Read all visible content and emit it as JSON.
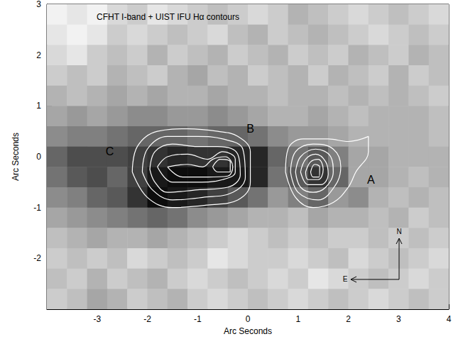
{
  "chart_data": {
    "type": "heatmap",
    "title": "CFHT I-band + UIST IFU Hα contours",
    "x_label": "Arc Seconds",
    "y_label": "Arc Seconds",
    "xlim": [
      -4,
      4
    ],
    "xticks": [
      -3,
      -2,
      -1,
      0,
      1,
      2,
      3,
      4
    ],
    "ylim": [
      -3,
      3
    ],
    "yticks": [
      -2,
      -1,
      0,
      1,
      2,
      3
    ],
    "image": {
      "x": [
        -3.8,
        -3.4,
        -3.0,
        -2.6,
        -2.2,
        -1.8,
        -1.4,
        -1.0,
        -0.6,
        -0.2,
        0.2,
        0.6,
        1.0,
        1.4,
        1.8,
        2.2,
        2.6,
        3.0,
        3.4,
        3.8
      ],
      "y": [
        2.8,
        2.4,
        2.0,
        1.6,
        1.2,
        0.8,
        0.4,
        0.0,
        -0.4,
        -0.8,
        -1.2,
        -1.6,
        -2.0,
        -2.4,
        -2.8
      ],
      "zlim": [
        0,
        1
      ],
      "values": [
        [
          0.05,
          0.1,
          0.05,
          0.15,
          0.2,
          0.1,
          0.15,
          0.2,
          0.25,
          0.2,
          0.15,
          0.2,
          0.3,
          0.25,
          0.2,
          0.15,
          0.2,
          0.25,
          0.2,
          0.15
        ],
        [
          0.1,
          0.05,
          0.1,
          0.2,
          0.15,
          0.2,
          0.25,
          0.2,
          0.15,
          0.25,
          0.3,
          0.2,
          0.25,
          0.3,
          0.25,
          0.2,
          0.15,
          0.2,
          0.25,
          0.2
        ],
        [
          0.15,
          0.1,
          0.2,
          0.25,
          0.2,
          0.3,
          0.2,
          0.25,
          0.3,
          0.2,
          0.25,
          0.3,
          0.2,
          0.25,
          0.2,
          0.3,
          0.25,
          0.2,
          0.3,
          0.25
        ],
        [
          0.2,
          0.25,
          0.2,
          0.3,
          0.25,
          0.2,
          0.3,
          0.35,
          0.25,
          0.3,
          0.2,
          0.25,
          0.3,
          0.2,
          0.3,
          0.25,
          0.2,
          0.3,
          0.2,
          0.25
        ],
        [
          0.3,
          0.25,
          0.3,
          0.35,
          0.3,
          0.35,
          0.3,
          0.3,
          0.35,
          0.3,
          0.3,
          0.25,
          0.3,
          0.3,
          0.25,
          0.3,
          0.25,
          0.3,
          0.25,
          0.2
        ],
        [
          0.35,
          0.4,
          0.35,
          0.4,
          0.45,
          0.45,
          0.4,
          0.4,
          0.45,
          0.4,
          0.35,
          0.3,
          0.3,
          0.35,
          0.3,
          0.25,
          0.3,
          0.3,
          0.3,
          0.25
        ],
        [
          0.45,
          0.5,
          0.5,
          0.55,
          0.6,
          0.6,
          0.6,
          0.55,
          0.6,
          0.6,
          0.55,
          0.45,
          0.4,
          0.4,
          0.35,
          0.3,
          0.3,
          0.3,
          0.3,
          0.25
        ],
        [
          0.6,
          0.7,
          0.7,
          0.7,
          0.75,
          0.8,
          0.85,
          0.8,
          0.8,
          0.85,
          0.85,
          0.6,
          0.55,
          0.65,
          0.5,
          0.35,
          0.35,
          0.3,
          0.3,
          0.3
        ],
        [
          0.55,
          0.65,
          0.7,
          0.6,
          0.75,
          0.9,
          0.95,
          0.95,
          0.9,
          0.9,
          0.85,
          0.55,
          0.65,
          0.8,
          0.6,
          0.35,
          0.35,
          0.3,
          0.25,
          0.3
        ],
        [
          0.45,
          0.5,
          0.6,
          0.65,
          0.8,
          0.95,
          0.9,
          0.85,
          0.75,
          0.65,
          0.55,
          0.4,
          0.5,
          0.6,
          0.4,
          0.45,
          0.3,
          0.25,
          0.3,
          0.25
        ],
        [
          0.35,
          0.4,
          0.45,
          0.5,
          0.55,
          0.6,
          0.55,
          0.45,
          0.4,
          0.35,
          0.3,
          0.3,
          0.25,
          0.35,
          0.3,
          0.3,
          0.25,
          0.3,
          0.2,
          0.25
        ],
        [
          0.25,
          0.3,
          0.35,
          0.3,
          0.3,
          0.35,
          0.3,
          0.25,
          0.2,
          0.15,
          0.2,
          0.25,
          0.2,
          0.25,
          0.2,
          0.2,
          0.25,
          0.2,
          0.25,
          0.2
        ],
        [
          0.2,
          0.25,
          0.2,
          0.25,
          0.15,
          0.2,
          0.25,
          0.2,
          0.1,
          0.15,
          0.2,
          0.2,
          0.15,
          0.2,
          0.25,
          0.15,
          0.2,
          0.25,
          0.2,
          0.15
        ],
        [
          0.25,
          0.2,
          0.3,
          0.2,
          0.25,
          0.3,
          0.2,
          0.15,
          0.2,
          0.25,
          0.2,
          0.15,
          0.2,
          0.1,
          0.15,
          0.2,
          0.25,
          0.2,
          0.15,
          0.2
        ],
        [
          0.2,
          0.25,
          0.35,
          0.3,
          0.2,
          0.25,
          0.3,
          0.2,
          0.15,
          0.2,
          0.25,
          0.2,
          0.15,
          0.2,
          0.25,
          0.2,
          0.15,
          0.2,
          0.25,
          0.2
        ]
      ]
    },
    "contours": {
      "color": "#ffffff",
      "lines": [
        [
          [
            -2.3,
            -0.3
          ],
          [
            -2.2,
            0.2
          ],
          [
            -1.8,
            0.5
          ],
          [
            -1.2,
            0.55
          ],
          [
            -0.6,
            0.5
          ],
          [
            -0.2,
            0.4
          ],
          [
            0.05,
            0.1
          ],
          [
            0.05,
            -0.5
          ],
          [
            -0.2,
            -0.85
          ],
          [
            -0.8,
            -0.95
          ],
          [
            -1.5,
            -1.0
          ],
          [
            -2.0,
            -0.8
          ],
          [
            -2.3,
            -0.3
          ]
        ],
        [
          [
            -2.1,
            -0.3
          ],
          [
            -2.0,
            0.15
          ],
          [
            -1.6,
            0.4
          ],
          [
            -1.0,
            0.4
          ],
          [
            -0.5,
            0.35
          ],
          [
            -0.1,
            0.15
          ],
          [
            -0.05,
            -0.4
          ],
          [
            -0.3,
            -0.7
          ],
          [
            -0.9,
            -0.8
          ],
          [
            -1.5,
            -0.85
          ],
          [
            -1.9,
            -0.65
          ],
          [
            -2.1,
            -0.3
          ]
        ],
        [
          [
            -1.95,
            -0.25
          ],
          [
            -1.85,
            0.1
          ],
          [
            -1.5,
            0.25
          ],
          [
            -1.0,
            0.2
          ],
          [
            -0.6,
            0.2
          ],
          [
            -0.2,
            0.05
          ],
          [
            -0.15,
            -0.35
          ],
          [
            -0.4,
            -0.6
          ],
          [
            -1.0,
            -0.65
          ],
          [
            -1.6,
            -0.7
          ],
          [
            -1.85,
            -0.5
          ],
          [
            -1.95,
            -0.25
          ]
        ],
        [
          [
            -1.8,
            -0.2
          ],
          [
            -1.6,
            0.0
          ],
          [
            -1.2,
            0.05
          ],
          [
            -0.8,
            -0.05
          ],
          [
            -0.5,
            0.1
          ],
          [
            -0.25,
            -0.05
          ],
          [
            -0.25,
            -0.3
          ],
          [
            -0.5,
            -0.45
          ],
          [
            -1.0,
            -0.5
          ],
          [
            -1.5,
            -0.5
          ],
          [
            -1.8,
            -0.2
          ]
        ],
        [
          [
            -1.6,
            -0.2
          ],
          [
            -1.2,
            -0.15
          ],
          [
            -0.9,
            -0.2
          ],
          [
            -0.7,
            -0.05
          ],
          [
            -0.45,
            0.0
          ],
          [
            -0.3,
            -0.2
          ],
          [
            -0.4,
            -0.38
          ],
          [
            -0.8,
            -0.4
          ],
          [
            -1.3,
            -0.4
          ],
          [
            -1.6,
            -0.2
          ]
        ],
        [
          [
            -0.7,
            -0.2
          ],
          [
            -0.55,
            -0.05
          ],
          [
            -0.35,
            -0.1
          ],
          [
            -0.35,
            -0.3
          ],
          [
            -0.6,
            -0.3
          ],
          [
            -0.7,
            -0.2
          ]
        ],
        [
          [
            0.75,
            -0.3
          ],
          [
            0.8,
            0.15
          ],
          [
            1.1,
            0.35
          ],
          [
            1.6,
            0.35
          ],
          [
            2.0,
            0.3
          ],
          [
            2.4,
            0.4
          ],
          [
            2.4,
            0.1
          ],
          [
            2.15,
            -0.3
          ],
          [
            2.0,
            -0.6
          ],
          [
            1.7,
            -0.9
          ],
          [
            1.3,
            -1.0
          ],
          [
            0.95,
            -0.8
          ],
          [
            0.75,
            -0.3
          ]
        ],
        [
          [
            0.85,
            -0.3
          ],
          [
            0.95,
            0.1
          ],
          [
            1.3,
            0.25
          ],
          [
            1.7,
            0.15
          ],
          [
            1.85,
            -0.2
          ],
          [
            1.75,
            -0.55
          ],
          [
            1.4,
            -0.85
          ],
          [
            1.0,
            -0.7
          ],
          [
            0.85,
            -0.3
          ]
        ],
        [
          [
            0.95,
            -0.3
          ],
          [
            1.05,
            0.0
          ],
          [
            1.35,
            0.15
          ],
          [
            1.65,
            0.0
          ],
          [
            1.7,
            -0.3
          ],
          [
            1.55,
            -0.6
          ],
          [
            1.3,
            -0.7
          ],
          [
            1.05,
            -0.6
          ],
          [
            0.95,
            -0.3
          ]
        ],
        [
          [
            1.05,
            -0.3
          ],
          [
            1.15,
            -0.05
          ],
          [
            1.35,
            0.05
          ],
          [
            1.55,
            -0.1
          ],
          [
            1.6,
            -0.35
          ],
          [
            1.45,
            -0.55
          ],
          [
            1.2,
            -0.55
          ],
          [
            1.05,
            -0.3
          ]
        ],
        [
          [
            1.15,
            -0.3
          ],
          [
            1.25,
            -0.1
          ],
          [
            1.4,
            -0.05
          ],
          [
            1.5,
            -0.25
          ],
          [
            1.4,
            -0.45
          ],
          [
            1.2,
            -0.45
          ],
          [
            1.15,
            -0.3
          ]
        ],
        [
          [
            1.25,
            -0.3
          ],
          [
            1.33,
            -0.15
          ],
          [
            1.43,
            -0.2
          ],
          [
            1.42,
            -0.4
          ],
          [
            1.3,
            -0.4
          ],
          [
            1.25,
            -0.3
          ]
        ]
      ]
    },
    "annotations": [
      {
        "text": "A",
        "x": 2.45,
        "y": -0.45
      },
      {
        "text": "B",
        "x": 0.05,
        "y": 0.55
      },
      {
        "text": "C",
        "x": -2.75,
        "y": 0.1
      }
    ],
    "compass": {
      "north": "N",
      "east": "E"
    }
  }
}
